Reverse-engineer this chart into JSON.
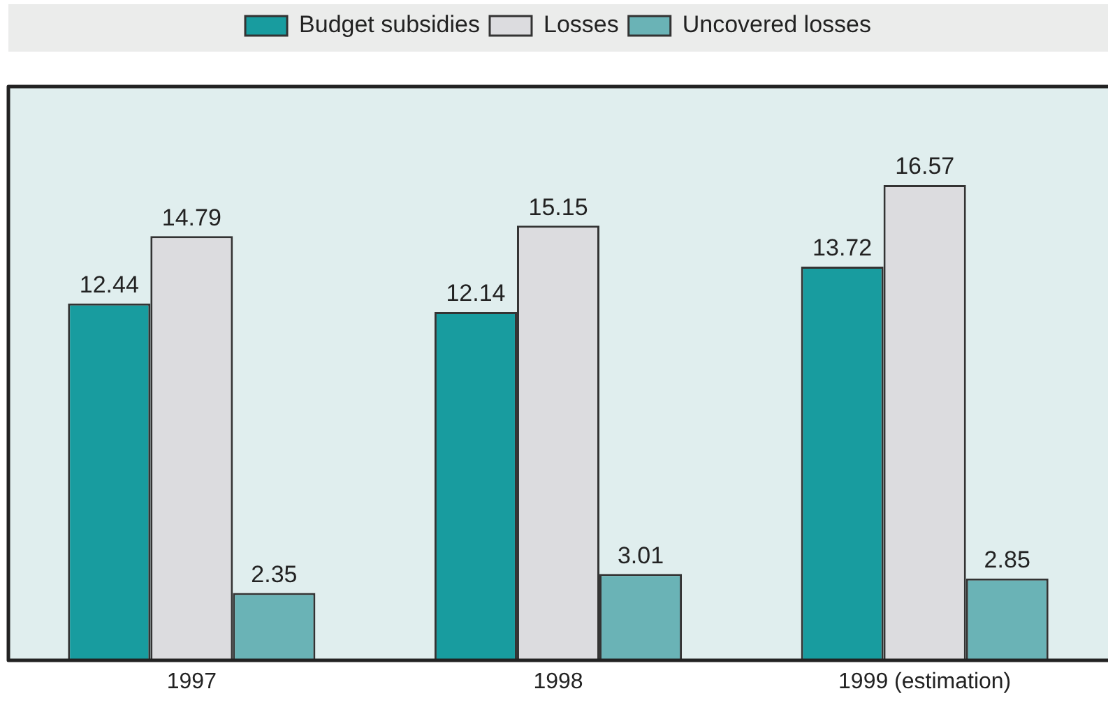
{
  "chart_data": {
    "type": "bar",
    "categories": [
      "1997",
      "1998",
      "1999 (estimation)"
    ],
    "series": [
      {
        "name": "Budget subsidies",
        "color": "#189c9f",
        "values": [
          12.44,
          12.14,
          13.72
        ]
      },
      {
        "name": "Losses",
        "color": "#dcdcdf",
        "values": [
          14.79,
          15.15,
          16.57
        ]
      },
      {
        "name": "Uncovered losses",
        "color": "#6ab3b6",
        "values": [
          2.35,
          3.01,
          2.85
        ]
      }
    ],
    "ylim": [
      0,
      20
    ],
    "tick_labels": "x",
    "data_labels": true,
    "legend": "top"
  }
}
